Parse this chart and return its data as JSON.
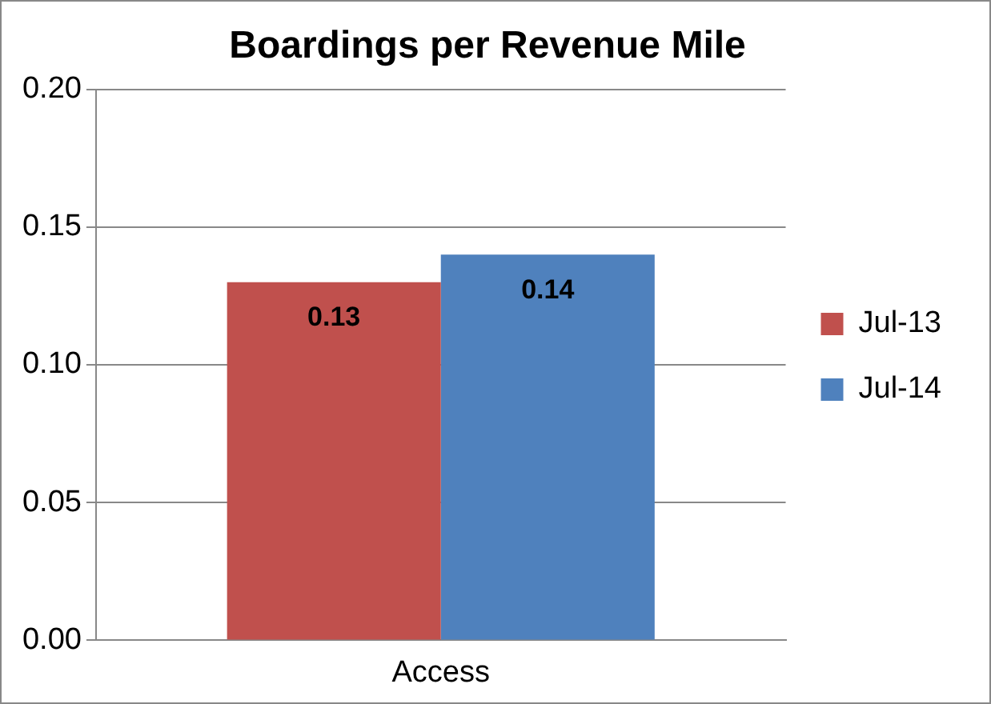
{
  "chart_data": {
    "type": "bar",
    "title": "Boardings per Revenue Mile",
    "categories": [
      "Access"
    ],
    "series": [
      {
        "name": "Jul-13",
        "color": "#c0504d",
        "values": [
          0.13
        ]
      },
      {
        "name": "Jul-14",
        "color": "#4f81bd",
        "values": [
          0.14
        ]
      }
    ],
    "ylim": [
      0,
      0.2
    ],
    "yticks": [
      {
        "value": 0,
        "label": "0.00"
      },
      {
        "value": 0.05,
        "label": "0.05"
      },
      {
        "value": 0.1,
        "label": "0.10"
      },
      {
        "value": 0.15,
        "label": "0.15"
      },
      {
        "value": 0.2,
        "label": "0.20"
      }
    ],
    "grid": "y",
    "legend": "right",
    "data_labels": true
  }
}
